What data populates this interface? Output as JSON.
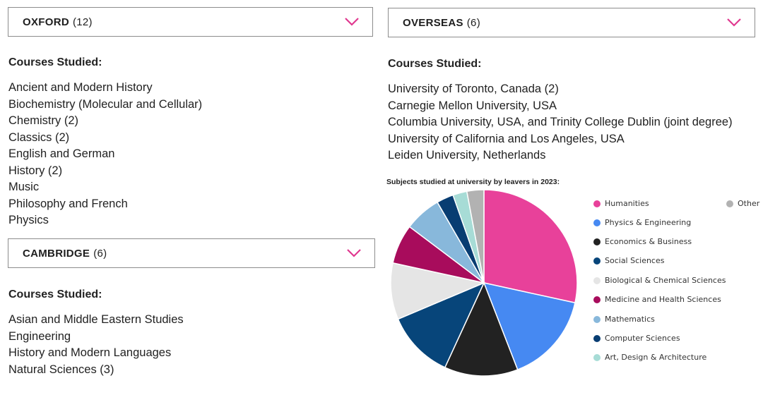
{
  "oxford": {
    "title": "OXFORD",
    "count": "(12)",
    "courses_heading": "Courses Studied:",
    "courses": [
      "Ancient and Modern History",
      "Biochemistry (Molecular and Cellular)",
      "Chemistry (2)",
      "Classics (2)",
      "English and German",
      "History (2)",
      "Music",
      "Philosophy and French",
      "Physics"
    ]
  },
  "cambridge": {
    "title": "CAMBRIDGE",
    "count": "(6)",
    "courses_heading": "Courses Studied:",
    "courses": [
      "Asian and Middle Eastern Studies",
      "Engineering",
      "History and Modern Languages",
      "Natural Sciences (3)"
    ]
  },
  "overseas": {
    "title": "OVERSEAS",
    "count": "(6)",
    "courses_heading": "Courses Studied:",
    "courses": [
      "University of Toronto, Canada (2)",
      "Carnegie Mellon University, USA",
      "Columbia University, USA, and Trinity College Dublin (joint degree)",
      "University of California and Los Angeles, USA",
      "Leiden University, Netherlands"
    ]
  },
  "colors": {
    "accent": "#e0388f",
    "border": "#8c8c8c"
  },
  "chart_data": {
    "type": "pie",
    "title": "Subjects studied at university by leavers in 2023:",
    "legend_position": "right",
    "slices": [
      {
        "label": "Humanities",
        "value": 29,
        "color": "#e8419a"
      },
      {
        "label": "Physics & Engineering",
        "value": 16,
        "color": "#4689f2"
      },
      {
        "label": "Economics & Business",
        "value": 13,
        "color": "#222222"
      },
      {
        "label": "Social Sciences",
        "value": 12,
        "color": "#07457a"
      },
      {
        "label": "Biological & Chemical Sciences",
        "value": 10,
        "color": "#e5e5e5"
      },
      {
        "label": "Medicine and Health Sciences",
        "value": 7,
        "color": "#a80c5c"
      },
      {
        "label": "Mathematics",
        "value": 6.5,
        "color": "#88b8db"
      },
      {
        "label": "Computer Sciences",
        "value": 3,
        "color": "#083d72"
      },
      {
        "label": "Art, Design & Architecture",
        "value": 2.5,
        "color": "#a7dcd6"
      },
      {
        "label": "Other",
        "value": 3,
        "color": "#b2b2b2"
      }
    ]
  }
}
